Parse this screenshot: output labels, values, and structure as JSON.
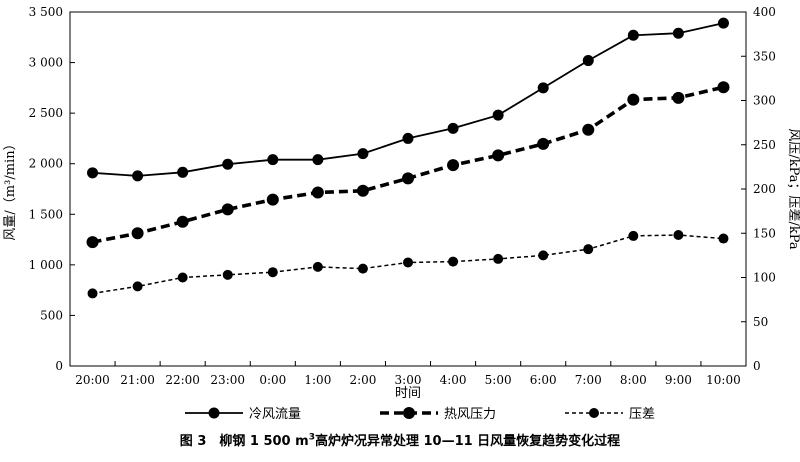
{
  "chart_data": {
    "type": "line",
    "categories": [
      "20:00",
      "21:00",
      "22:00",
      "23:00",
      "0:00",
      "1:00",
      "2:00",
      "3:00",
      "4:00",
      "5:00",
      "6:00",
      "7:00",
      "8:00",
      "9:00",
      "10:00"
    ],
    "xlabel": "时间",
    "ylabel": "风量/（m³/min）",
    "y2label": "风压/kPa；压差/kPa",
    "ylim": [
      0,
      3500
    ],
    "y2lim": [
      0,
      400
    ],
    "yticks": [
      "0",
      "500",
      "1 000",
      "1 500",
      "2 000",
      "2 500",
      "3 000",
      "3 500"
    ],
    "y2ticks": [
      "0",
      "50",
      "100",
      "150",
      "200",
      "250",
      "300",
      "350",
      "400"
    ],
    "grid": false,
    "legend_position": "bottom",
    "series": [
      {
        "name": "冷风流量",
        "axis": "left",
        "line": "solid",
        "values": [
          1910,
          1880,
          1915,
          1995,
          2040,
          2040,
          2100,
          2250,
          2350,
          2480,
          2750,
          3020,
          3270,
          3290,
          3390
        ]
      },
      {
        "name": "热风压力",
        "axis": "right",
        "line": "dashed-thick",
        "values": [
          140,
          150,
          163,
          177,
          188,
          196,
          198,
          212,
          227,
          238,
          251,
          267,
          301,
          303,
          315
        ]
      },
      {
        "name": "压差",
        "axis": "right",
        "line": "dashed-thin",
        "values": [
          82,
          90,
          100,
          103,
          106,
          112,
          110,
          117,
          118,
          121,
          125,
          132,
          147,
          148,
          144
        ]
      }
    ]
  },
  "caption": {
    "prefix": "图 3　柳钢 1 500 m",
    "superscript": "3",
    "suffix": "高炉炉况异常处理 10—11 日风量恢复趋势变化过程"
  }
}
